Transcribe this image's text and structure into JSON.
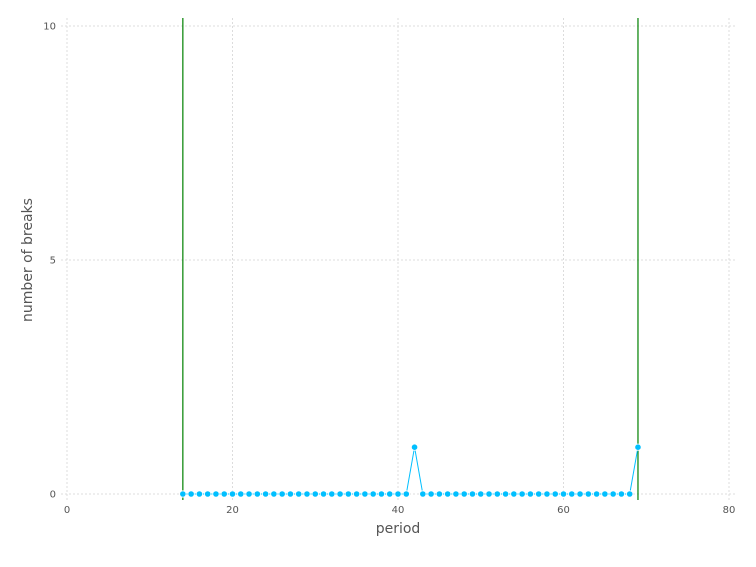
{
  "chart_data": {
    "type": "line",
    "xlabel": "period",
    "ylabel": "number of breaks",
    "xlim": [
      0,
      80
    ],
    "ylim": [
      0,
      10
    ],
    "x_ticks": [
      0,
      20,
      40,
      60,
      80
    ],
    "y_ticks": [
      0,
      5,
      10
    ],
    "grid": true,
    "series": [
      {
        "color": "#00bfff",
        "x": [
          14,
          15,
          16,
          17,
          18,
          19,
          20,
          21,
          22,
          23,
          24,
          25,
          26,
          27,
          28,
          29,
          30,
          31,
          32,
          33,
          34,
          35,
          36,
          37,
          38,
          39,
          40,
          41,
          42,
          43,
          44,
          45,
          46,
          47,
          48,
          49,
          50,
          51,
          52,
          53,
          54,
          55,
          56,
          57,
          58,
          59,
          60,
          61,
          62,
          63,
          64,
          65,
          66,
          67,
          68,
          69
        ],
        "values": [
          0,
          0,
          0,
          0,
          0,
          0,
          0,
          0,
          0,
          0,
          0,
          0,
          0,
          0,
          0,
          0,
          0,
          0,
          0,
          0,
          0,
          0,
          0,
          0,
          0,
          0,
          0,
          0,
          1,
          0,
          0,
          0,
          0,
          0,
          0,
          0,
          0,
          0,
          0,
          0,
          0,
          0,
          0,
          0,
          0,
          0,
          0,
          0,
          0,
          0,
          0,
          0,
          0,
          0,
          0,
          1
        ]
      }
    ],
    "vlines": [
      {
        "x": 14,
        "color": "#008000"
      },
      {
        "x": 69,
        "color": "#008000"
      }
    ]
  }
}
